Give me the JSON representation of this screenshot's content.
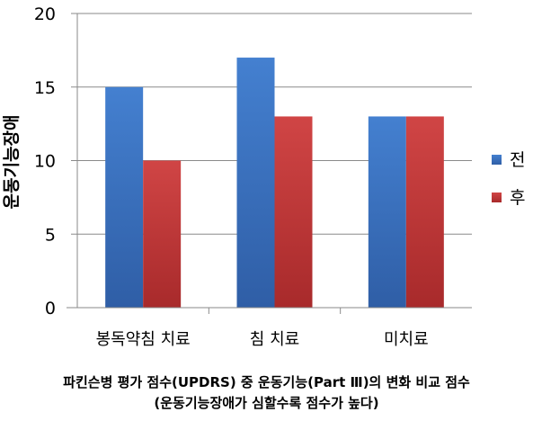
{
  "chart_data": {
    "type": "bar",
    "categories": [
      "봉독약침 치료",
      "침 치료",
      "미치료"
    ],
    "series": [
      {
        "name": "전",
        "values": [
          15,
          17,
          13
        ],
        "color": "#3d74c4"
      },
      {
        "name": "후",
        "values": [
          10,
          13,
          13
        ],
        "color": "#c3393a"
      }
    ],
    "ylabel": "운동기능장애",
    "ylim": [
      0,
      20
    ],
    "yticks": [
      0,
      5,
      10,
      15,
      20
    ],
    "grid": true,
    "legend": "right"
  },
  "caption": {
    "line1": "파킨슨병 평가 점수(UPDRS) 중 운동기능(Part Ⅲ)의 변화 비교 점수",
    "line2": "(운동기능장애가 심할수록 점수가 높다)"
  }
}
